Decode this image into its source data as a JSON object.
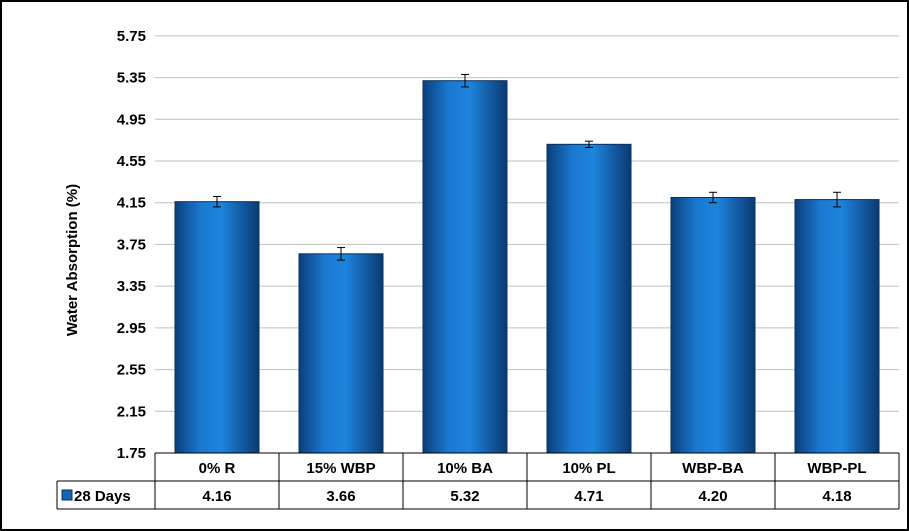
{
  "chart_data": {
    "type": "bar",
    "ylabel": "Water Absorption (%)",
    "ylim": [
      1.75,
      5.95
    ],
    "yticks": [
      "1.75",
      "2.15",
      "2.55",
      "2.95",
      "3.35",
      "3.75",
      "4.15",
      "4.55",
      "4.95",
      "5.35",
      "5.75"
    ],
    "grid": true,
    "categories": [
      "0% R",
      "15% WBP",
      "10% BA",
      "10% PL",
      "WBP-BA",
      "WBP-PL"
    ],
    "series": [
      {
        "name": "28 Days",
        "values": [
          4.16,
          3.66,
          5.32,
          4.71,
          4.2,
          4.18
        ],
        "value_labels": [
          "4.16",
          "3.66",
          "5.32",
          "4.71",
          "4.20",
          "4.18"
        ],
        "error": [
          0.05,
          0.06,
          0.06,
          0.03,
          0.05,
          0.07
        ],
        "color": "#1466b8"
      }
    ],
    "data_table": true
  }
}
